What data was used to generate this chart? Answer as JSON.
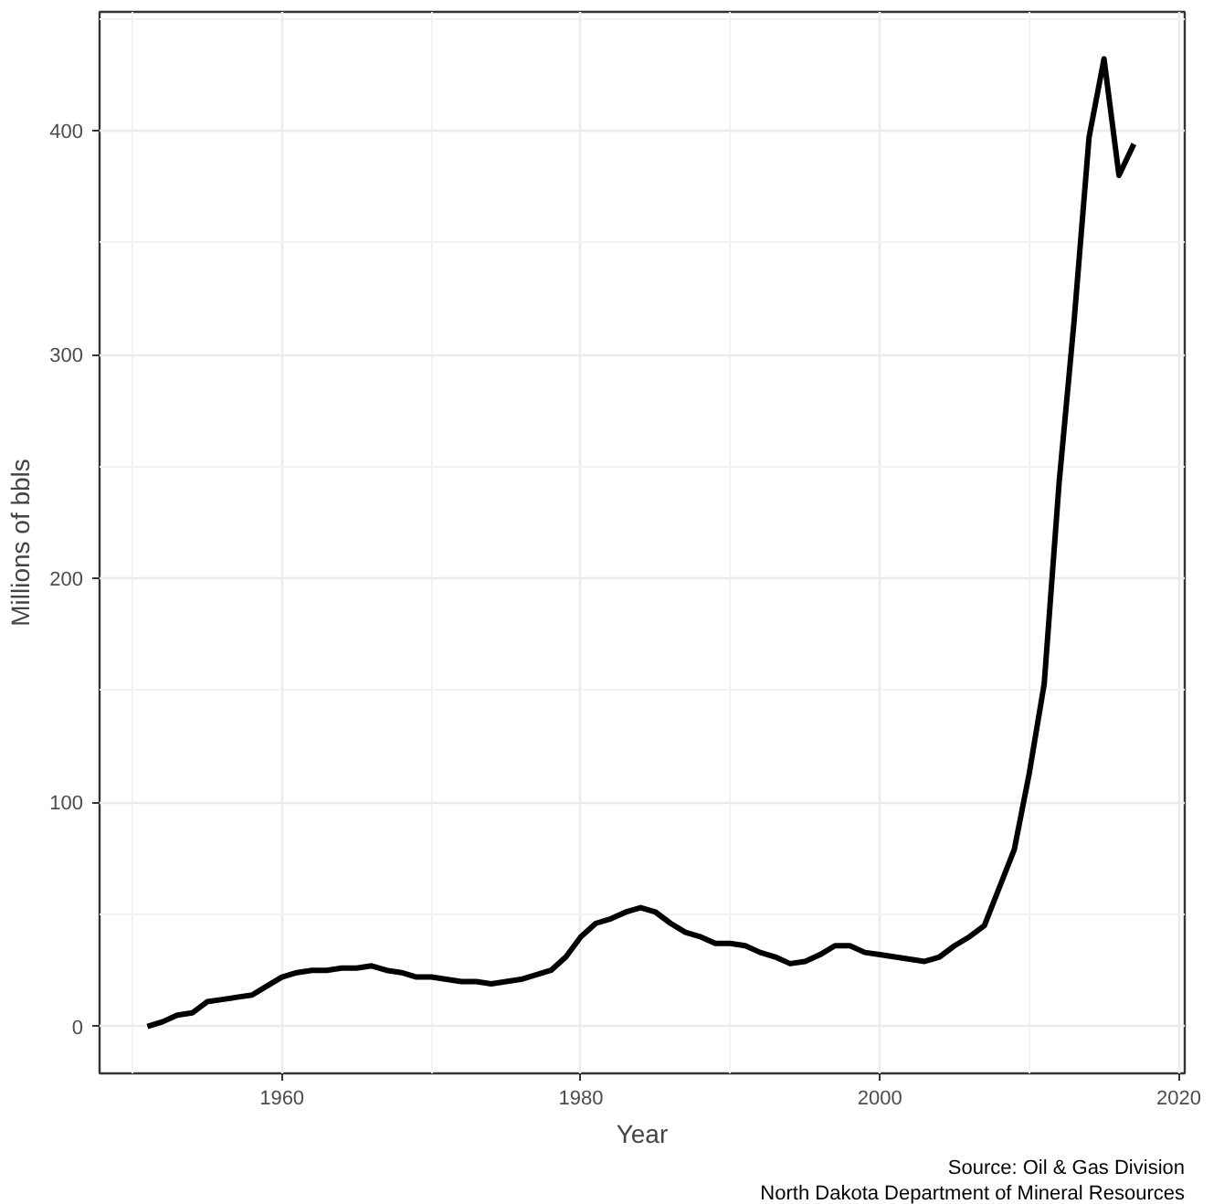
{
  "chart_data": {
    "type": "line",
    "xlabel": "Year",
    "ylabel": "Millions of bbls",
    "annotations": [
      "Source: Oil & Gas Division",
      "North Dakota Department of Mineral Resources"
    ],
    "x": [
      1951,
      1952,
      1953,
      1954,
      1955,
      1956,
      1957,
      1958,
      1959,
      1960,
      1961,
      1962,
      1963,
      1964,
      1965,
      1966,
      1967,
      1968,
      1969,
      1970,
      1971,
      1972,
      1973,
      1974,
      1975,
      1976,
      1977,
      1978,
      1979,
      1980,
      1981,
      1982,
      1983,
      1984,
      1985,
      1986,
      1987,
      1988,
      1989,
      1990,
      1991,
      1992,
      1993,
      1994,
      1995,
      1996,
      1997,
      1998,
      1999,
      2000,
      2001,
      2002,
      2003,
      2004,
      2005,
      2006,
      2007,
      2008,
      2009,
      2010,
      2011,
      2012,
      2013,
      2014,
      2015,
      2016,
      2017
    ],
    "series": [
      {
        "color": "#000000",
        "values": [
          0,
          2,
          5,
          6,
          11,
          12,
          13,
          14,
          18,
          22,
          24,
          25,
          25,
          26,
          26,
          27,
          25,
          24,
          22,
          22,
          21,
          20,
          20,
          19,
          20,
          21,
          23,
          25,
          31,
          40,
          46,
          48,
          51,
          53,
          51,
          46,
          42,
          40,
          37,
          37,
          36,
          33,
          31,
          28,
          29,
          32,
          36,
          36,
          33,
          32,
          31,
          30,
          29,
          31,
          36,
          40,
          45,
          62,
          79,
          113,
          153,
          243,
          315,
          397,
          432,
          380,
          394
        ]
      }
    ],
    "xlim": [
      1947.8,
      2020.4
    ],
    "ylim": [
      -21,
      453
    ],
    "xticks": [
      1960,
      1980,
      2000,
      2020
    ],
    "yticks": [
      0,
      100,
      200,
      300,
      400
    ],
    "grid": true,
    "line_style": "solid",
    "marker": "none"
  }
}
